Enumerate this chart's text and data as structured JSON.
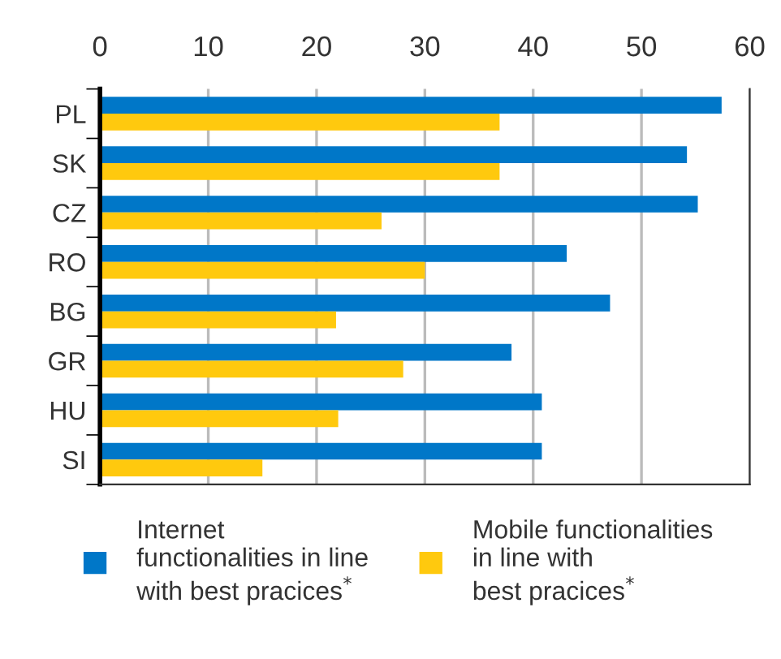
{
  "chart_data": {
    "type": "bar",
    "orientation": "horizontal",
    "categories": [
      "PL",
      "SK",
      "CZ",
      "RO",
      "BG",
      "GR",
      "HU",
      "SI"
    ],
    "series": [
      {
        "name": "Internet\nfunctionalities in line\nwith best pracices$^{*}$",
        "color": "#0077c8",
        "values": [
          57.4,
          54.2,
          55.2,
          43.1,
          47.1,
          38.0,
          40.8,
          40.8
        ]
      },
      {
        "name": "Mobile functionalities\nin line with\nbest pracices$^{*}$",
        "color": "#ffc90e",
        "values": [
          36.9,
          36.9,
          26.0,
          30.0,
          21.8,
          28.0,
          22.0,
          15.0
        ]
      }
    ],
    "xlim": [
      0,
      60
    ],
    "xticks": [
      0,
      10,
      20,
      30,
      40,
      50,
      60
    ],
    "grid": "x",
    "legend": "bottom"
  }
}
